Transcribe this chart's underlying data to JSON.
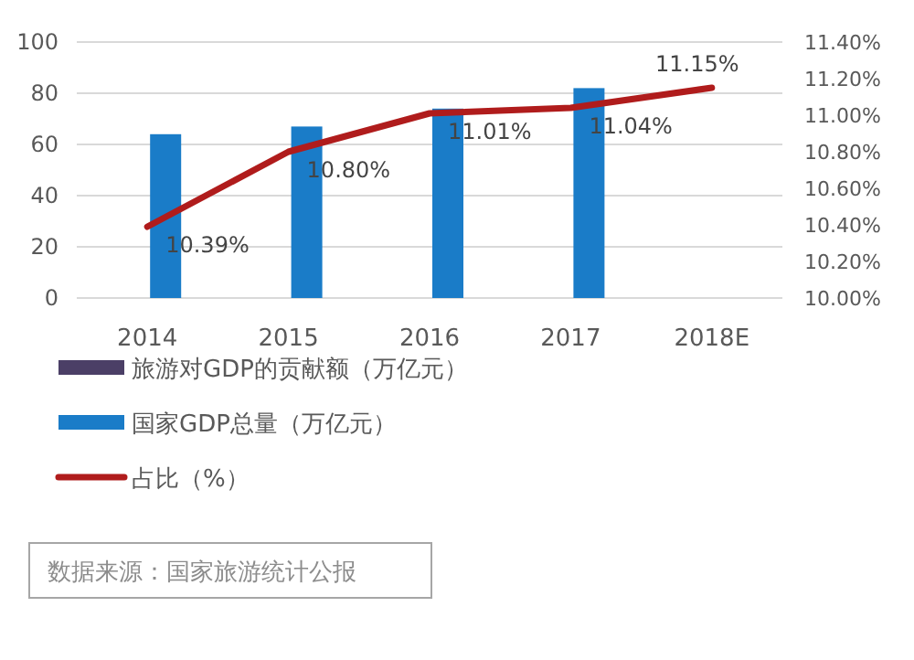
{
  "chart_data": {
    "type": "bar",
    "categories": [
      "2014",
      "2015",
      "2016",
      "2017",
      "2018E"
    ],
    "series": [
      {
        "name": "旅游对GDP的贡献额（万亿元）",
        "color": "#4b3f66",
        "values": [
          null,
          null,
          null,
          null,
          null
        ]
      },
      {
        "name": "国家GDP总量（万亿元）",
        "color": "#1a7cc8",
        "values": [
          64,
          67,
          74,
          82,
          null
        ]
      },
      {
        "name": "占比（%）",
        "type": "line",
        "axis": "y2",
        "color": "#b01c1c",
        "values": [
          10.39,
          10.8,
          11.01,
          11.04,
          11.15
        ],
        "value_labels": [
          "10.39%",
          "10.80%",
          "11.01%",
          "11.04%",
          "11.15%"
        ]
      }
    ],
    "ylim": [
      0,
      100
    ],
    "yticks": [
      0,
      20,
      40,
      60,
      80,
      100
    ],
    "y2lim": [
      10.0,
      11.4
    ],
    "y2ticks": [
      {
        "value": 10.0,
        "label": "10.00%"
      },
      {
        "value": 10.2,
        "label": "10.20%"
      },
      {
        "value": 10.4,
        "label": "10.40%"
      },
      {
        "value": 10.6,
        "label": "10.60%"
      },
      {
        "value": 10.8,
        "label": "10.80%"
      },
      {
        "value": 11.0,
        "label": "11.00%"
      },
      {
        "value": 11.2,
        "label": "11.20%"
      },
      {
        "value": 11.4,
        "label": "11.40%"
      }
    ],
    "grid": "y",
    "legend": "bottom",
    "marker": "none",
    "line_style": "solid",
    "annotations": [
      "数据来源：国家旅游统计公报"
    ]
  }
}
